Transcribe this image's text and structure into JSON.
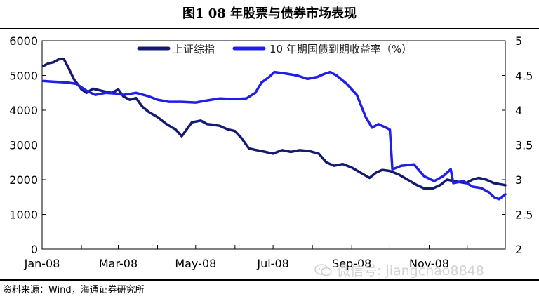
{
  "page": {
    "title": "图1  08 年股票与债券市场表现",
    "source": "资料来源：Wind，海通证券研究所",
    "watermark": "微信号: jiangchao8848",
    "watermark_icon": "wechat-icon"
  },
  "chart_data": {
    "type": "line",
    "title": "",
    "x_tick_labels": [
      "Jan-08",
      "Mar-08",
      "May-08",
      "Jul-08",
      "Sep-08",
      "Nov-08"
    ],
    "x_range": [
      "2008-01-01",
      "2008-12-31"
    ],
    "y_left": {
      "ticks": [
        "0",
        "1000",
        "2000",
        "3000",
        "4000",
        "5000",
        "6000"
      ],
      "lim": [
        0,
        6000
      ]
    },
    "y_right": {
      "ticks": [
        "2",
        "2.5",
        "3",
        "3.5",
        "4",
        "4.5",
        "5"
      ],
      "lim": [
        2,
        5
      ]
    },
    "grid": false,
    "legend_position": "top",
    "series": [
      {
        "name": "上证综指",
        "axis": "left",
        "color": "#141a6e",
        "points": [
          [
            "2008-01-02",
            5270
          ],
          [
            "2008-01-06",
            5350
          ],
          [
            "2008-01-10",
            5380
          ],
          [
            "2008-01-14",
            5460
          ],
          [
            "2008-01-18",
            5480
          ],
          [
            "2008-01-22",
            5200
          ],
          [
            "2008-01-26",
            4900
          ],
          [
            "2008-02-01",
            4600
          ],
          [
            "2008-02-05",
            4500
          ],
          [
            "2008-02-10",
            4620
          ],
          [
            "2008-02-18",
            4550
          ],
          [
            "2008-02-25",
            4500
          ],
          [
            "2008-03-01",
            4600
          ],
          [
            "2008-03-05",
            4400
          ],
          [
            "2008-03-10",
            4300
          ],
          [
            "2008-03-15",
            4350
          ],
          [
            "2008-03-20",
            4100
          ],
          [
            "2008-03-25",
            3950
          ],
          [
            "2008-04-01",
            3800
          ],
          [
            "2008-04-08",
            3600
          ],
          [
            "2008-04-15",
            3450
          ],
          [
            "2008-04-20",
            3250
          ],
          [
            "2008-04-25",
            3500
          ],
          [
            "2008-04-28",
            3650
          ],
          [
            "2008-05-05",
            3700
          ],
          [
            "2008-05-10",
            3600
          ],
          [
            "2008-05-15",
            3580
          ],
          [
            "2008-05-20",
            3550
          ],
          [
            "2008-05-26",
            3450
          ],
          [
            "2008-06-01",
            3400
          ],
          [
            "2008-06-06",
            3200
          ],
          [
            "2008-06-12",
            2900
          ],
          [
            "2008-06-18",
            2850
          ],
          [
            "2008-06-25",
            2800
          ],
          [
            "2008-07-01",
            2750
          ],
          [
            "2008-07-08",
            2850
          ],
          [
            "2008-07-15",
            2800
          ],
          [
            "2008-07-22",
            2850
          ],
          [
            "2008-07-30",
            2820
          ],
          [
            "2008-08-06",
            2750
          ],
          [
            "2008-08-12",
            2500
          ],
          [
            "2008-08-18",
            2400
          ],
          [
            "2008-08-25",
            2450
          ],
          [
            "2008-09-01",
            2350
          ],
          [
            "2008-09-08",
            2200
          ],
          [
            "2008-09-15",
            2050
          ],
          [
            "2008-09-20",
            2200
          ],
          [
            "2008-09-25",
            2280
          ],
          [
            "2008-10-01",
            2250
          ],
          [
            "2008-10-08",
            2150
          ],
          [
            "2008-10-15",
            2000
          ],
          [
            "2008-10-22",
            1850
          ],
          [
            "2008-10-28",
            1750
          ],
          [
            "2008-11-04",
            1750
          ],
          [
            "2008-11-10",
            1850
          ],
          [
            "2008-11-15",
            2000
          ],
          [
            "2008-11-22",
            1950
          ],
          [
            "2008-11-30",
            1900
          ],
          [
            "2008-12-05",
            2000
          ],
          [
            "2008-12-10",
            2050
          ],
          [
            "2008-12-16",
            2000
          ],
          [
            "2008-12-22",
            1900
          ],
          [
            "2008-12-31",
            1840
          ]
        ]
      },
      {
        "name": "10 年期国债到期收益率（%）",
        "axis": "right",
        "color": "#1f1fe8",
        "points": [
          [
            "2008-01-02",
            4.42
          ],
          [
            "2008-01-10",
            4.41
          ],
          [
            "2008-01-20",
            4.4
          ],
          [
            "2008-01-28",
            4.38
          ],
          [
            "2008-02-05",
            4.28
          ],
          [
            "2008-02-12",
            4.22
          ],
          [
            "2008-02-20",
            4.25
          ],
          [
            "2008-02-28",
            4.24
          ],
          [
            "2008-03-05",
            4.22
          ],
          [
            "2008-03-15",
            4.25
          ],
          [
            "2008-03-25",
            4.2
          ],
          [
            "2008-04-01",
            4.15
          ],
          [
            "2008-04-10",
            4.12
          ],
          [
            "2008-04-20",
            4.12
          ],
          [
            "2008-05-01",
            4.11
          ],
          [
            "2008-05-10",
            4.14
          ],
          [
            "2008-05-20",
            4.17
          ],
          [
            "2008-05-31",
            4.16
          ],
          [
            "2008-06-10",
            4.17
          ],
          [
            "2008-06-17",
            4.25
          ],
          [
            "2008-06-22",
            4.4
          ],
          [
            "2008-06-28",
            4.48
          ],
          [
            "2008-07-02",
            4.55
          ],
          [
            "2008-07-10",
            4.53
          ],
          [
            "2008-07-20",
            4.5
          ],
          [
            "2008-07-28",
            4.45
          ],
          [
            "2008-08-05",
            4.48
          ],
          [
            "2008-08-10",
            4.52
          ],
          [
            "2008-08-15",
            4.55
          ],
          [
            "2008-08-20",
            4.5
          ],
          [
            "2008-08-28",
            4.38
          ],
          [
            "2008-09-05",
            4.22
          ],
          [
            "2008-09-12",
            3.9
          ],
          [
            "2008-09-17",
            3.75
          ],
          [
            "2008-09-22",
            3.8
          ],
          [
            "2008-09-28",
            3.75
          ],
          [
            "2008-10-01",
            3.72
          ],
          [
            "2008-10-03",
            3.15
          ],
          [
            "2008-10-10",
            3.2
          ],
          [
            "2008-10-20",
            3.22
          ],
          [
            "2008-10-28",
            3.05
          ],
          [
            "2008-11-05",
            2.98
          ],
          [
            "2008-11-12",
            3.05
          ],
          [
            "2008-11-18",
            3.15
          ],
          [
            "2008-11-20",
            2.95
          ],
          [
            "2008-11-28",
            2.98
          ],
          [
            "2008-12-05",
            2.9
          ],
          [
            "2008-12-12",
            2.88
          ],
          [
            "2008-12-18",
            2.82
          ],
          [
            "2008-12-22",
            2.75
          ],
          [
            "2008-12-26",
            2.72
          ],
          [
            "2008-12-31",
            2.79
          ]
        ]
      }
    ]
  }
}
